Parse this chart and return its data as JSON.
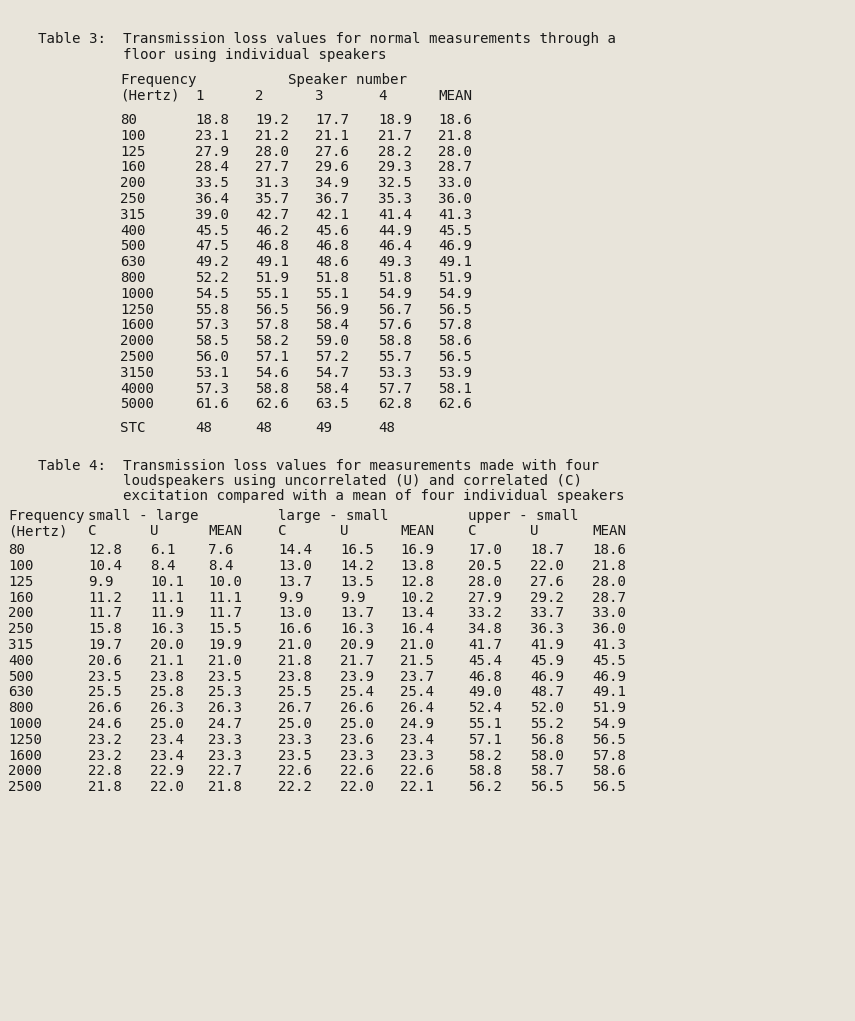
{
  "bg_color": "#e8e4da",
  "text_color": "#1a1a1a",
  "table3_title_line1": "Table 3:  Transmission loss values for normal measurements through a",
  "table3_title_line2": "          floor using individual speakers",
  "table3_data": [
    [
      "80",
      "18.8",
      "19.2",
      "17.7",
      "18.9",
      "18.6"
    ],
    [
      "100",
      "23.1",
      "21.2",
      "21.1",
      "21.7",
      "21.8"
    ],
    [
      "125",
      "27.9",
      "28.0",
      "27.6",
      "28.2",
      "28.0"
    ],
    [
      "160",
      "28.4",
      "27.7",
      "29.6",
      "29.3",
      "28.7"
    ],
    [
      "200",
      "33.5",
      "31.3",
      "34.9",
      "32.5",
      "33.0"
    ],
    [
      "250",
      "36.4",
      "35.7",
      "36.7",
      "35.3",
      "36.0"
    ],
    [
      "315",
      "39.0",
      "42.7",
      "42.1",
      "41.4",
      "41.3"
    ],
    [
      "400",
      "45.5",
      "46.2",
      "45.6",
      "44.9",
      "45.5"
    ],
    [
      "500",
      "47.5",
      "46.8",
      "46.8",
      "46.4",
      "46.9"
    ],
    [
      "630",
      "49.2",
      "49.1",
      "48.6",
      "49.3",
      "49.1"
    ],
    [
      "800",
      "52.2",
      "51.9",
      "51.8",
      "51.8",
      "51.9"
    ],
    [
      "1000",
      "54.5",
      "55.1",
      "55.1",
      "54.9",
      "54.9"
    ],
    [
      "1250",
      "55.8",
      "56.5",
      "56.9",
      "56.7",
      "56.5"
    ],
    [
      "1600",
      "57.3",
      "57.8",
      "58.4",
      "57.6",
      "57.8"
    ],
    [
      "2000",
      "58.5",
      "58.2",
      "59.0",
      "58.8",
      "58.6"
    ],
    [
      "2500",
      "56.0",
      "57.1",
      "57.2",
      "55.7",
      "56.5"
    ],
    [
      "3150",
      "53.1",
      "54.6",
      "54.7",
      "53.3",
      "53.9"
    ],
    [
      "4000",
      "57.3",
      "58.8",
      "58.4",
      "57.7",
      "58.1"
    ],
    [
      "5000",
      "61.6",
      "62.6",
      "63.5",
      "62.8",
      "62.6"
    ]
  ],
  "table3_stc": [
    "STC",
    "48",
    "48",
    "49",
    "48"
  ],
  "table4_title_line1": "Table 4:  Transmission loss values for measurements made with four",
  "table4_title_line2": "          loudspeakers using uncorrelated (U) and correlated (C)",
  "table4_title_line3": "          excitation compared with a mean of four individual speakers",
  "table4_data": [
    [
      "80",
      "12.8",
      "6.1",
      "7.6",
      "14.4",
      "16.5",
      "16.9",
      "17.0",
      "18.7",
      "18.6"
    ],
    [
      "100",
      "10.4",
      "8.4",
      "8.4",
      "13.0",
      "14.2",
      "13.8",
      "20.5",
      "22.0",
      "21.8"
    ],
    [
      "125",
      "9.9",
      "10.1",
      "10.0",
      "13.7",
      "13.5",
      "12.8",
      "28.0",
      "27.6",
      "28.0"
    ],
    [
      "160",
      "11.2",
      "11.1",
      "11.1",
      "9.9",
      "9.9",
      "10.2",
      "27.9",
      "29.2",
      "28.7"
    ],
    [
      "200",
      "11.7",
      "11.9",
      "11.7",
      "13.0",
      "13.7",
      "13.4",
      "33.2",
      "33.7",
      "33.0"
    ],
    [
      "250",
      "15.8",
      "16.3",
      "15.5",
      "16.6",
      "16.3",
      "16.4",
      "34.8",
      "36.3",
      "36.0"
    ],
    [
      "315",
      "19.7",
      "20.0",
      "19.9",
      "21.0",
      "20.9",
      "21.0",
      "41.7",
      "41.9",
      "41.3"
    ],
    [
      "400",
      "20.6",
      "21.1",
      "21.0",
      "21.8",
      "21.7",
      "21.5",
      "45.4",
      "45.9",
      "45.5"
    ],
    [
      "500",
      "23.5",
      "23.8",
      "23.5",
      "23.8",
      "23.9",
      "23.7",
      "46.8",
      "46.9",
      "46.9"
    ],
    [
      "630",
      "25.5",
      "25.8",
      "25.3",
      "25.5",
      "25.4",
      "25.4",
      "49.0",
      "48.7",
      "49.1"
    ],
    [
      "800",
      "26.6",
      "26.3",
      "26.3",
      "26.7",
      "26.6",
      "26.4",
      "52.4",
      "52.0",
      "51.9"
    ],
    [
      "1000",
      "24.6",
      "25.0",
      "24.7",
      "25.0",
      "25.0",
      "24.9",
      "55.1",
      "55.2",
      "54.9"
    ],
    [
      "1250",
      "23.2",
      "23.4",
      "23.3",
      "23.3",
      "23.6",
      "23.4",
      "57.1",
      "56.8",
      "56.5"
    ],
    [
      "1600",
      "23.2",
      "23.4",
      "23.3",
      "23.5",
      "23.3",
      "23.3",
      "58.2",
      "58.0",
      "57.8"
    ],
    [
      "2000",
      "22.8",
      "22.9",
      "22.7",
      "22.6",
      "22.6",
      "22.6",
      "58.8",
      "58.7",
      "58.6"
    ],
    [
      "2500",
      "21.8",
      "22.0",
      "21.8",
      "22.2",
      "22.0",
      "22.1",
      "56.2",
      "56.5",
      "56.5"
    ]
  ]
}
